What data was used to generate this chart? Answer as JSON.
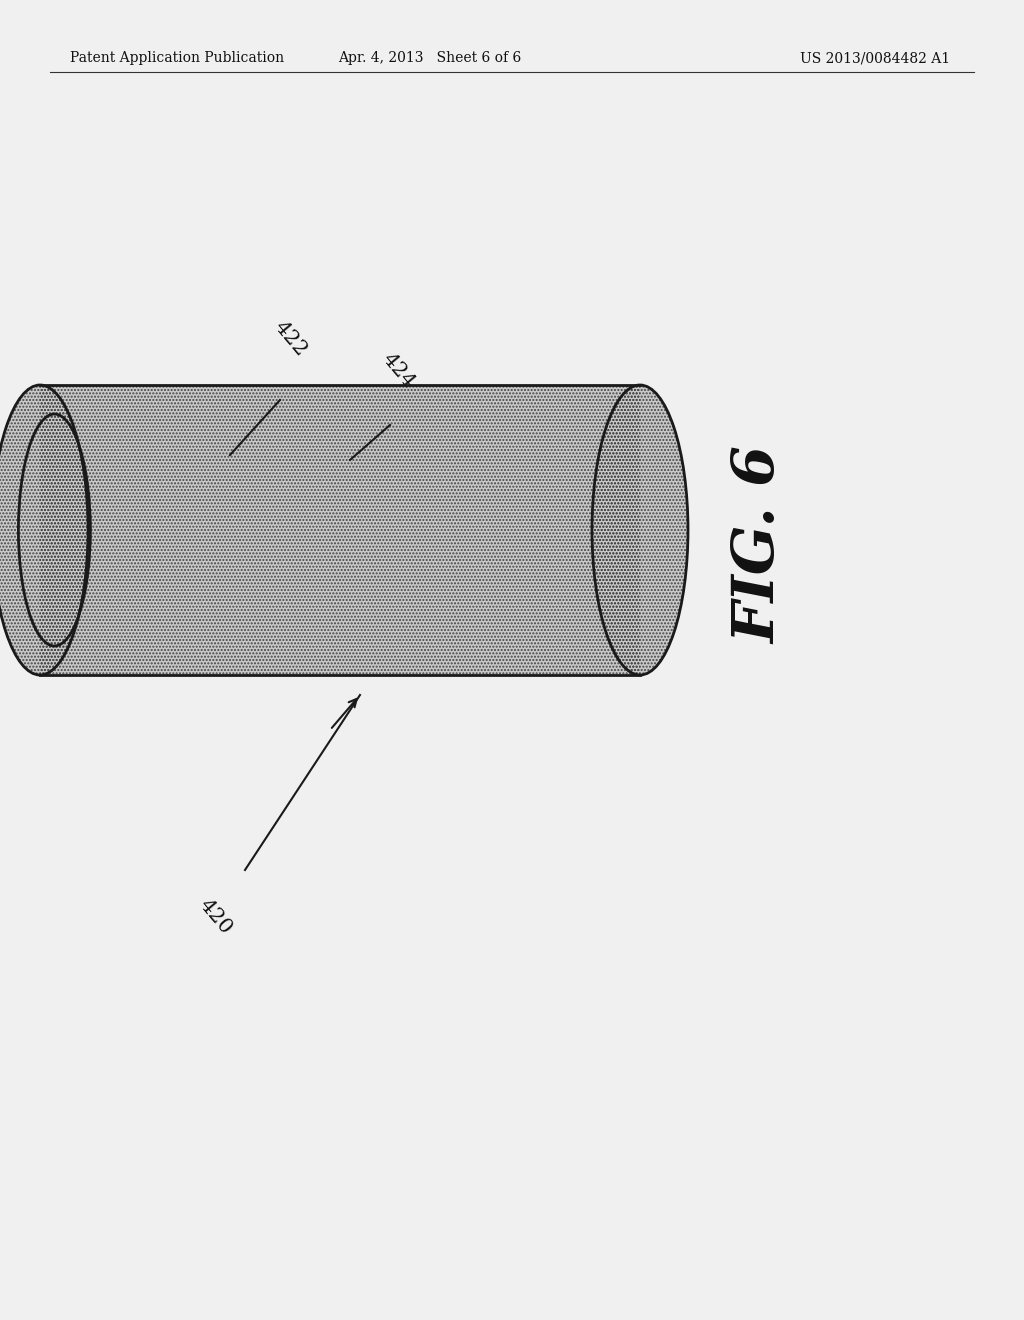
{
  "bg_color": "#f0f0f0",
  "header_left": "Patent Application Publication",
  "header_center": "Apr. 4, 2013   Sheet 6 of 6",
  "header_right": "US 2013/0084482 A1",
  "fig_label": "FIG. 6",
  "label_420": "420",
  "label_422": "422",
  "label_424": "424",
  "outline_color": "#1a1a1a",
  "fill_color": "#c8c8c8",
  "hatch_color": "#444444",
  "text_color": "#111111"
}
